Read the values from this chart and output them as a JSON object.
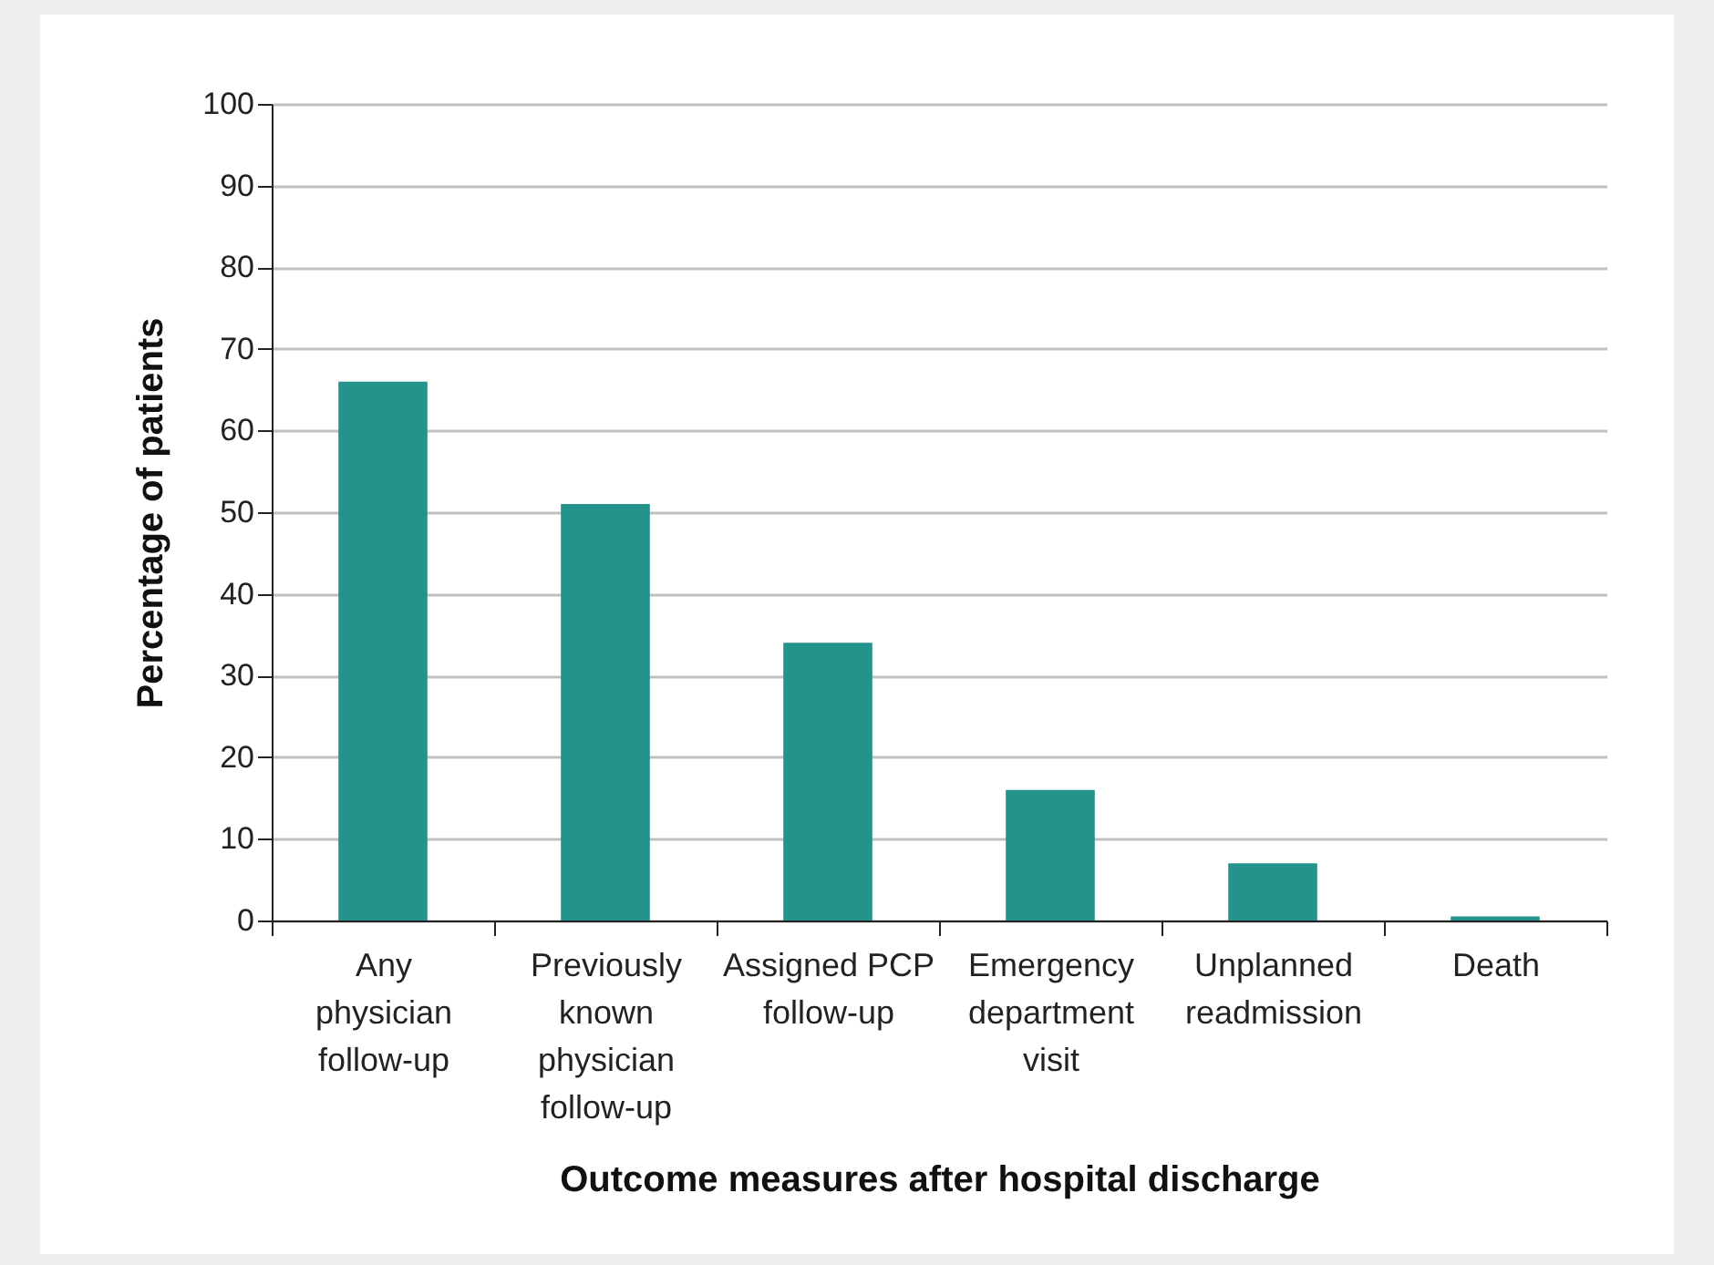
{
  "chart_data": {
    "type": "bar",
    "xlabel": "Outcome measures after hospital discharge",
    "ylabel": "Percentage of patients",
    "categories": [
      "Any physician follow-up",
      "Previously known physician follow-up",
      "Assigned PCP follow-up",
      "Emergency department visit",
      "Unplanned readmission",
      "Death"
    ],
    "values": [
      66,
      51,
      34,
      16,
      7,
      0.5
    ],
    "color": "#23938b",
    "ylim": [
      0,
      100
    ],
    "yticks": [
      0,
      10,
      20,
      30,
      40,
      50,
      60,
      70,
      80,
      90,
      100
    ],
    "grid": "y"
  }
}
